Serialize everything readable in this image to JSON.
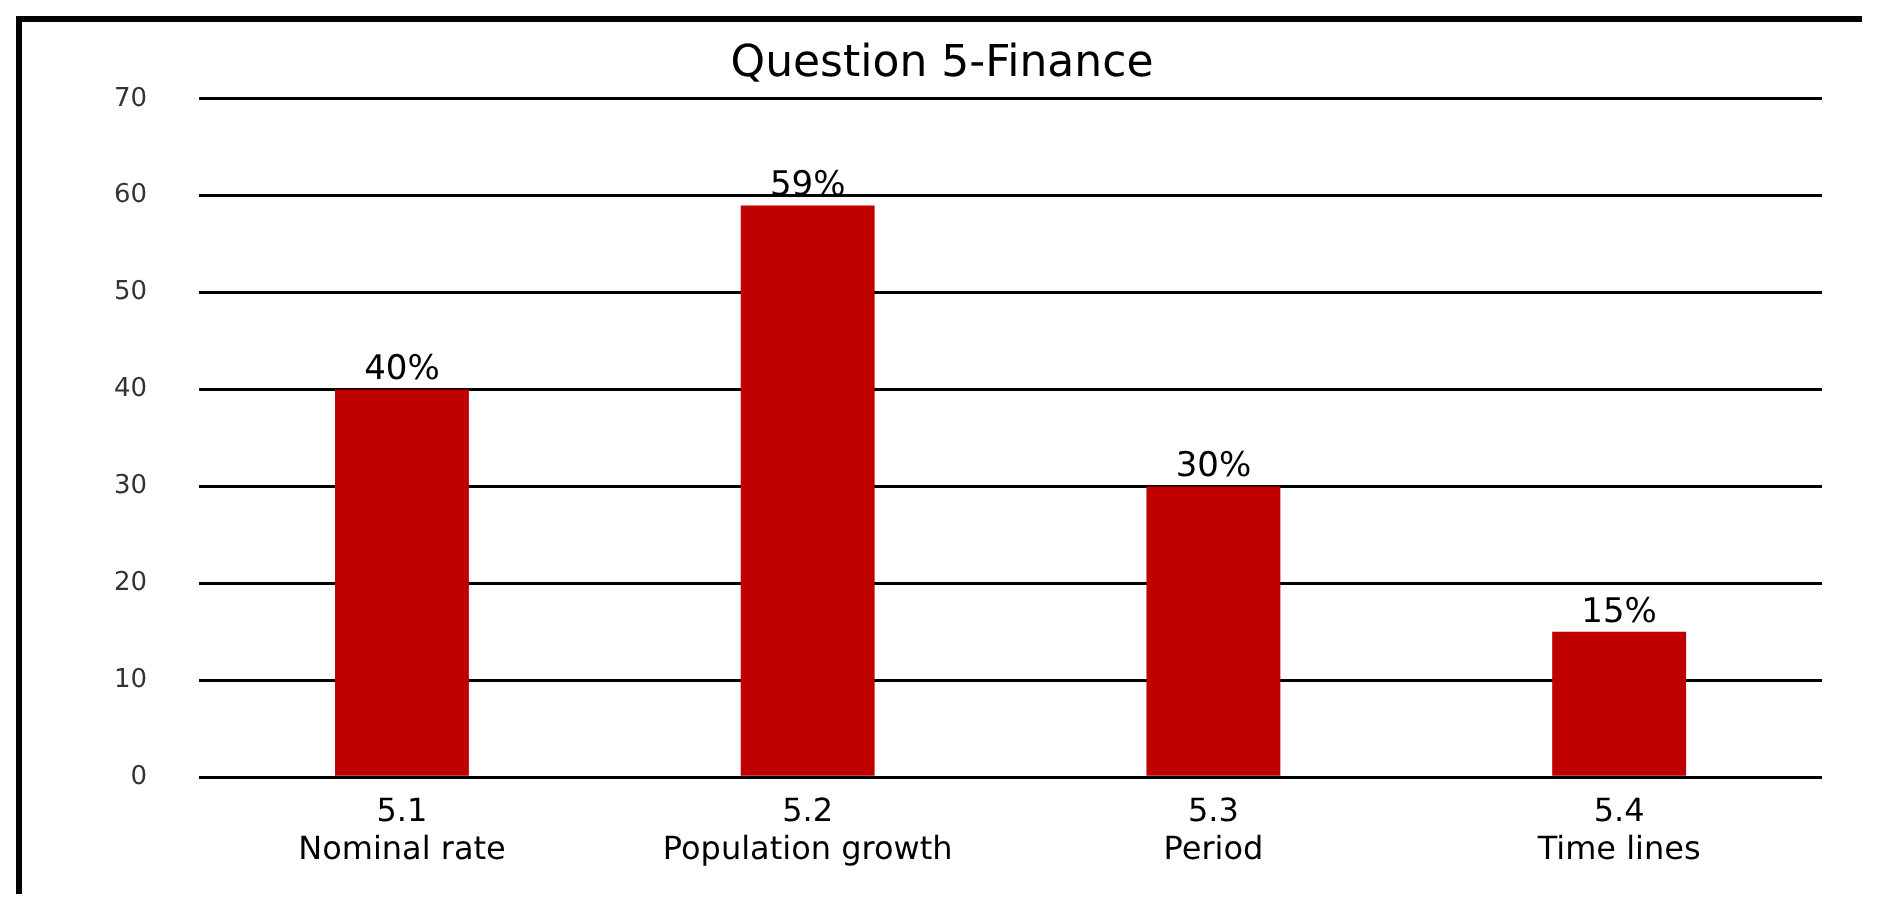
{
  "chart_data": {
    "type": "bar",
    "title": "Question 5-Finance",
    "categories": [
      "5.1\nNominal rate",
      "5.2\nPopulation growth",
      "5.3\nPeriod",
      "5.4\nTime lines"
    ],
    "values": [
      40,
      59,
      30,
      15
    ],
    "value_labels": [
      "40%",
      "59%",
      "30%",
      "15%"
    ],
    "color": "#c00000",
    "ylim": [
      0,
      70
    ],
    "yticks": [
      0,
      10,
      20,
      30,
      40,
      50,
      60,
      70
    ],
    "grid": "y",
    "legend": false
  }
}
